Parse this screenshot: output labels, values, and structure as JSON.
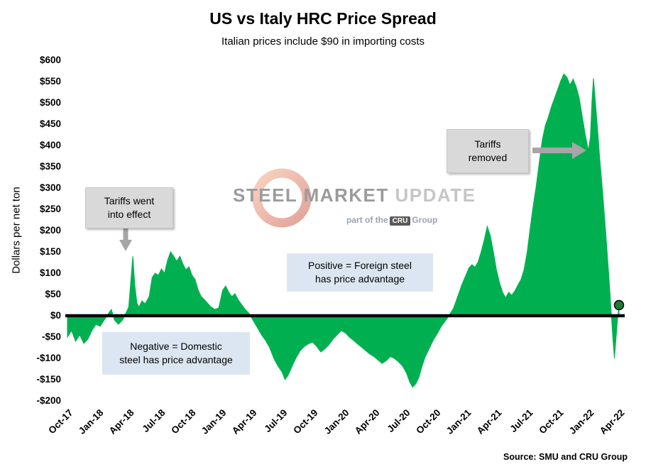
{
  "page": {
    "title": "US vs Italy HRC Price Spread",
    "subtitle": "Italian prices include $90 in importing costs",
    "source": "Source: SMU and CRU Group"
  },
  "watermark": {
    "steel": "STEEL",
    "market": "MARKET",
    "update": "UPDATE",
    "part_of": "part of the",
    "cru": "CRU",
    "group": "Group"
  },
  "annotations": {
    "tariffs_effect": {
      "line1": "Tariffs went",
      "line2": "into effect"
    },
    "tariffs_removed": {
      "line1": "Tariffs",
      "line2": "removed"
    },
    "positive": {
      "line1": "Positive = Foreign steel",
      "line2": "has price advantage"
    },
    "negative": {
      "line1": "Negative = Domestic",
      "line2": "steel has price advantage"
    }
  },
  "colors": {
    "area": "#00B050",
    "marker": "#1E7B34",
    "zero_line": "#000000",
    "annotation_gray": "#D9D9D9",
    "annotation_blue": "#DCE6F2",
    "arrow": "#A6A6A6"
  },
  "chart_data": {
    "type": "area",
    "title": "US vs Italy HRC Price Spread",
    "subtitle": "Italian prices include $90 in importing costs",
    "ylabel": "Dollars per net ton",
    "ylim": [
      -200,
      600
    ],
    "grid": false,
    "legend": false,
    "y_tick_values": [
      600,
      550,
      500,
      450,
      400,
      350,
      300,
      250,
      200,
      150,
      100,
      50,
      0,
      -50,
      -100,
      -150,
      -200
    ],
    "y_tick_labels": [
      "$600",
      "$550",
      "$500",
      "$450",
      "$400",
      "$350",
      "$300",
      "$250",
      "$200",
      "$150",
      "$100",
      "$50",
      "$0",
      "-$50",
      "-$100",
      "-$150",
      "-$200"
    ],
    "x_unit_note": "x = months since Oct-2017",
    "x_tick_positions": [
      0,
      3,
      6,
      9,
      12,
      15,
      18,
      21,
      24,
      27,
      30,
      33,
      36,
      39,
      42,
      45,
      48,
      51,
      54
    ],
    "x_tick_labels": [
      "Oct-17",
      "Jan-18",
      "Apr-18",
      "Jul-18",
      "Oct-18",
      "Jan-19",
      "Apr-19",
      "Jul-19",
      "Oct-19",
      "Jan-20",
      "Apr-20",
      "Jul-20",
      "Oct-20",
      "Jan-21",
      "Apr-21",
      "Jul-21",
      "Oct-21",
      "Jan-22",
      "Apr-22"
    ],
    "zero_baseline": 0,
    "end_marker": {
      "x": 54,
      "y": 25
    },
    "series": [
      {
        "name": "US minus Italy HRC price spread ($/net ton)",
        "points": [
          [
            0,
            -50
          ],
          [
            0.4,
            -35
          ],
          [
            0.8,
            -60
          ],
          [
            1.2,
            -45
          ],
          [
            1.6,
            -65
          ],
          [
            2,
            -55
          ],
          [
            2.4,
            -35
          ],
          [
            2.8,
            -20
          ],
          [
            3.2,
            -25
          ],
          [
            3.6,
            -10
          ],
          [
            4,
            5
          ],
          [
            4.3,
            15
          ],
          [
            4.6,
            -10
          ],
          [
            5,
            -20
          ],
          [
            5.4,
            -10
          ],
          [
            5.7,
            5
          ],
          [
            6,
            20
          ],
          [
            6.2,
            80
          ],
          [
            6.4,
            140
          ],
          [
            6.6,
            70
          ],
          [
            6.8,
            30
          ],
          [
            7,
            20
          ],
          [
            7.3,
            35
          ],
          [
            7.6,
            28
          ],
          [
            8,
            45
          ],
          [
            8.3,
            90
          ],
          [
            8.6,
            100
          ],
          [
            8.9,
            95
          ],
          [
            9.2,
            110
          ],
          [
            9.5,
            100
          ],
          [
            9.8,
            130
          ],
          [
            10.1,
            150
          ],
          [
            10.4,
            140
          ],
          [
            10.7,
            128
          ],
          [
            11,
            140
          ],
          [
            11.3,
            122
          ],
          [
            11.6,
            108
          ],
          [
            11.9,
            115
          ],
          [
            12.2,
            95
          ],
          [
            12.5,
            85
          ],
          [
            12.8,
            60
          ],
          [
            13.1,
            45
          ],
          [
            13.4,
            38
          ],
          [
            13.7,
            30
          ],
          [
            14,
            22
          ],
          [
            14.4,
            15
          ],
          [
            14.8,
            18
          ],
          [
            15.2,
            60
          ],
          [
            15.5,
            70
          ],
          [
            15.8,
            55
          ],
          [
            16.1,
            45
          ],
          [
            16.4,
            52
          ],
          [
            16.7,
            38
          ],
          [
            17,
            28
          ],
          [
            17.4,
            15
          ],
          [
            17.8,
            5
          ],
          [
            18.2,
            -12
          ],
          [
            18.6,
            -28
          ],
          [
            19,
            -45
          ],
          [
            19.4,
            -58
          ],
          [
            19.8,
            -75
          ],
          [
            20.2,
            -100
          ],
          [
            20.6,
            -118
          ],
          [
            21,
            -132
          ],
          [
            21.3,
            -150
          ],
          [
            21.6,
            -140
          ],
          [
            22,
            -118
          ],
          [
            22.4,
            -98
          ],
          [
            22.8,
            -82
          ],
          [
            23.2,
            -72
          ],
          [
            23.6,
            -66
          ],
          [
            24,
            -62
          ],
          [
            24.4,
            -72
          ],
          [
            24.8,
            -85
          ],
          [
            25.2,
            -78
          ],
          [
            25.6,
            -68
          ],
          [
            26,
            -55
          ],
          [
            26.4,
            -45
          ],
          [
            26.8,
            -35
          ],
          [
            27.2,
            -40
          ],
          [
            27.6,
            -50
          ],
          [
            28,
            -58
          ],
          [
            28.4,
            -66
          ],
          [
            28.8,
            -74
          ],
          [
            29.2,
            -82
          ],
          [
            29.6,
            -90
          ],
          [
            30,
            -96
          ],
          [
            30.4,
            -104
          ],
          [
            30.8,
            -112
          ],
          [
            31.2,
            -106
          ],
          [
            31.6,
            -96
          ],
          [
            32,
            -100
          ],
          [
            32.4,
            -108
          ],
          [
            32.8,
            -118
          ],
          [
            33.2,
            -135
          ],
          [
            33.5,
            -155
          ],
          [
            33.8,
            -168
          ],
          [
            34.1,
            -160
          ],
          [
            34.4,
            -145
          ],
          [
            34.7,
            -120
          ],
          [
            35,
            -98
          ],
          [
            35.4,
            -78
          ],
          [
            35.8,
            -58
          ],
          [
            36.2,
            -42
          ],
          [
            36.6,
            -25
          ],
          [
            37,
            -12
          ],
          [
            37.4,
            2
          ],
          [
            37.8,
            18
          ],
          [
            38.2,
            45
          ],
          [
            38.6,
            72
          ],
          [
            39,
            95
          ],
          [
            39.3,
            112
          ],
          [
            39.6,
            120
          ],
          [
            39.9,
            114
          ],
          [
            40.2,
            126
          ],
          [
            40.5,
            150
          ],
          [
            40.8,
            178
          ],
          [
            41.1,
            210
          ],
          [
            41.4,
            188
          ],
          [
            41.7,
            150
          ],
          [
            42,
            108
          ],
          [
            42.3,
            78
          ],
          [
            42.6,
            55
          ],
          [
            42.9,
            42
          ],
          [
            43.2,
            55
          ],
          [
            43.5,
            48
          ],
          [
            43.8,
            58
          ],
          [
            44.1,
            72
          ],
          [
            44.4,
            85
          ],
          [
            44.7,
            108
          ],
          [
            45,
            148
          ],
          [
            45.3,
            205
          ],
          [
            45.6,
            258
          ],
          [
            45.9,
            305
          ],
          [
            46.2,
            362
          ],
          [
            46.5,
            415
          ],
          [
            46.8,
            448
          ],
          [
            47.1,
            468
          ],
          [
            47.4,
            492
          ],
          [
            47.7,
            512
          ],
          [
            48,
            532
          ],
          [
            48.3,
            552
          ],
          [
            48.6,
            568
          ],
          [
            48.9,
            560
          ],
          [
            49.2,
            542
          ],
          [
            49.5,
            556
          ],
          [
            49.8,
            538
          ],
          [
            50.1,
            512
          ],
          [
            50.4,
            468
          ],
          [
            50.7,
            425
          ],
          [
            51,
            388
          ],
          [
            51.2,
            420
          ],
          [
            51.35,
            505
          ],
          [
            51.5,
            558
          ],
          [
            51.7,
            498
          ],
          [
            51.9,
            438
          ],
          [
            52.1,
            372
          ],
          [
            52.4,
            288
          ],
          [
            52.7,
            195
          ],
          [
            53,
            95
          ],
          [
            53.2,
            20
          ],
          [
            53.4,
            -55
          ],
          [
            53.55,
            -100
          ],
          [
            53.7,
            -55
          ],
          [
            53.85,
            -10
          ],
          [
            54,
            25
          ]
        ]
      }
    ]
  }
}
